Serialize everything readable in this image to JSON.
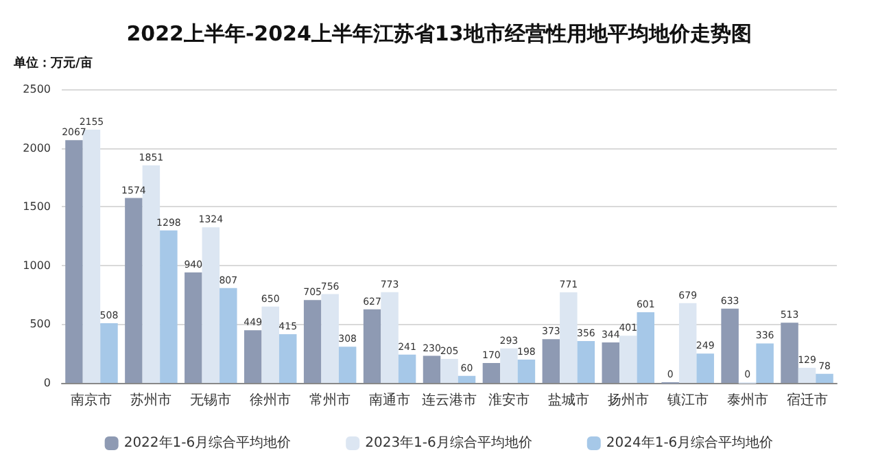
{
  "chart_data": {
    "type": "bar",
    "title": "2022上半年-2024上半年江苏省13地市经营性用地平均地价走势图",
    "ylabel": "单位：万元/亩",
    "categories": [
      "南京市",
      "苏州市",
      "无锡市",
      "徐州市",
      "常州市",
      "南通市",
      "连云港市",
      "淮安市",
      "盐城市",
      "扬州市",
      "镇江市",
      "泰州市",
      "宿迁市"
    ],
    "series": [
      {
        "name": "2022年1-6月综合平均地价",
        "color": "#8e9ab3",
        "values": [
          2067,
          1574,
          940,
          449,
          705,
          627,
          230,
          170,
          373,
          344,
          0,
          633,
          513
        ]
      },
      {
        "name": "2023年1-6月综合平均地价",
        "color": "#dce6f2",
        "values": [
          2155,
          1851,
          1324,
          650,
          756,
          773,
          205,
          293,
          771,
          401,
          679,
          0,
          129
        ]
      },
      {
        "name": "2024年1-6月综合平均地价",
        "color": "#a6c8e8",
        "values": [
          508,
          1298,
          807,
          415,
          308,
          241,
          60,
          198,
          356,
          601,
          249,
          336,
          78
        ]
      }
    ],
    "ylim": [
      0,
      2500
    ],
    "yticks": [
      0,
      500,
      1000,
      1500,
      2000,
      2500
    ],
    "grid": "y",
    "legend": "bottom",
    "data_labels": true
  }
}
